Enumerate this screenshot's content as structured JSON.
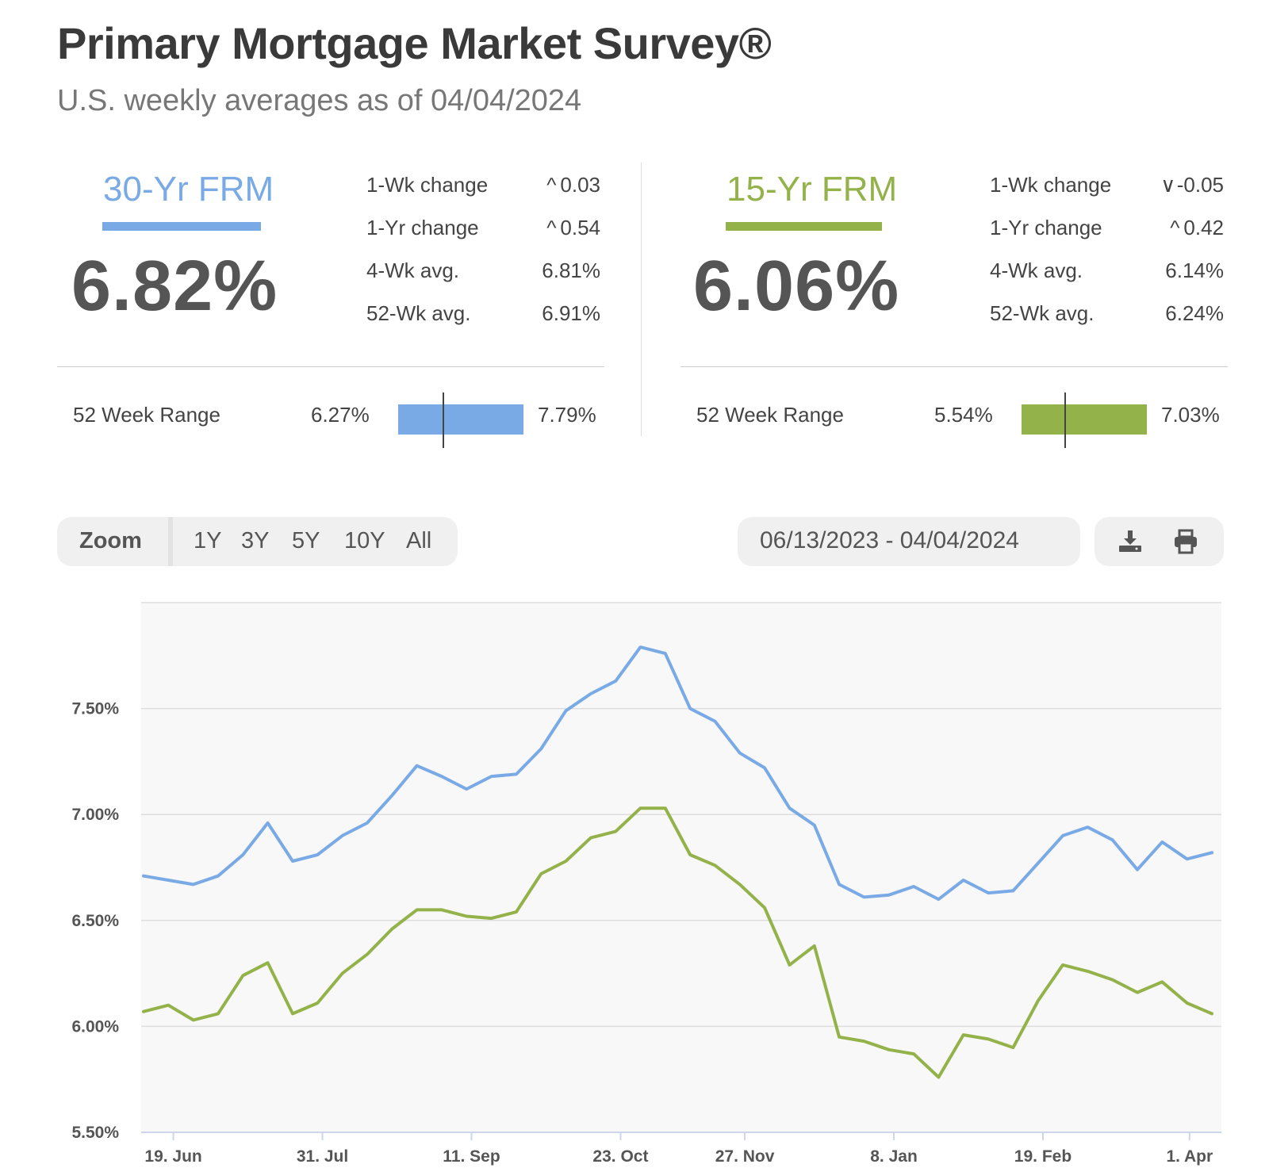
{
  "header": {
    "title": "Primary Mortgage Market Survey®",
    "subtitle": "U.S. weekly averages as of 04/04/2024"
  },
  "colors": {
    "frm30": "#7aaae6",
    "frm15": "#94b24a"
  },
  "frm30": {
    "label": "30-Yr FRM",
    "rate": "6.82%",
    "stats": [
      {
        "label": "1-Wk change",
        "arrow": "up",
        "value": "0.03"
      },
      {
        "label": "1-Yr change",
        "arrow": "up",
        "value": "0.54"
      },
      {
        "label": "4-Wk avg.",
        "arrow": "",
        "value": "6.81%"
      },
      {
        "label": "52-Wk avg.",
        "arrow": "",
        "value": "6.91%"
      }
    ],
    "range_label": "52 Week Range",
    "range_low": "6.27%",
    "range_high": "7.79%",
    "range_current": 6.82
  },
  "frm15": {
    "label": "15-Yr FRM",
    "rate": "6.06%",
    "stats": [
      {
        "label": "1-Wk change",
        "arrow": "down",
        "value": "-0.05"
      },
      {
        "label": "1-Yr change",
        "arrow": "up",
        "value": "0.42"
      },
      {
        "label": "4-Wk avg.",
        "arrow": "",
        "value": "6.14%"
      },
      {
        "label": "52-Wk avg.",
        "arrow": "",
        "value": "6.24%"
      }
    ],
    "range_label": "52 Week Range",
    "range_low": "5.54%",
    "range_high": "7.03%",
    "range_current": 6.06
  },
  "zoom": {
    "label": "Zoom",
    "options": [
      "1Y",
      "3Y",
      "5Y",
      "10Y",
      "All"
    ]
  },
  "date_range": "06/13/2023 - 04/04/2024",
  "tools": {
    "download_icon": "download-icon",
    "print_icon": "print-icon"
  },
  "chart_data": {
    "type": "line",
    "ylim": [
      5.5,
      8.0
    ],
    "y_ticks": [
      5.5,
      6.0,
      6.5,
      7.0,
      7.5
    ],
    "y_tick_labels": [
      "5.50%",
      "6.00%",
      "6.50%",
      "7.00%",
      "7.50%"
    ],
    "x_tick_labels": [
      "19. Jun",
      "31. Jul",
      "11. Sep",
      "23. Oct",
      "27. Nov",
      "8. Jan",
      "19. Feb",
      "1. Apr"
    ],
    "x_tick_week_index": [
      1.2,
      7.2,
      13.2,
      19.2,
      24.2,
      30.2,
      36.2,
      42.1
    ],
    "grid": true,
    "series": [
      {
        "key": "frm30",
        "values": [
          6.71,
          6.69,
          6.67,
          6.71,
          6.81,
          6.96,
          6.78,
          6.81,
          6.9,
          6.96,
          7.09,
          7.23,
          7.18,
          7.12,
          7.18,
          7.19,
          7.31,
          7.49,
          7.57,
          7.63,
          7.79,
          7.76,
          7.5,
          7.44,
          7.29,
          7.22,
          7.03,
          6.95,
          6.67,
          6.61,
          6.62,
          6.66,
          6.6,
          6.69,
          6.63,
          6.64,
          6.77,
          6.9,
          6.94,
          6.88,
          6.74,
          6.87,
          6.79,
          6.82
        ]
      },
      {
        "key": "frm15",
        "values": [
          6.07,
          6.1,
          6.03,
          6.06,
          6.24,
          6.3,
          6.06,
          6.11,
          6.25,
          6.34,
          6.46,
          6.55,
          6.55,
          6.52,
          6.51,
          6.54,
          6.72,
          6.78,
          6.89,
          6.92,
          7.03,
          7.03,
          6.81,
          6.76,
          6.67,
          6.56,
          6.29,
          6.38,
          5.95,
          5.93,
          5.89,
          5.87,
          5.76,
          5.96,
          5.94,
          5.9,
          6.12,
          6.29,
          6.26,
          6.22,
          6.16,
          6.21,
          6.11,
          6.06
        ]
      }
    ]
  }
}
